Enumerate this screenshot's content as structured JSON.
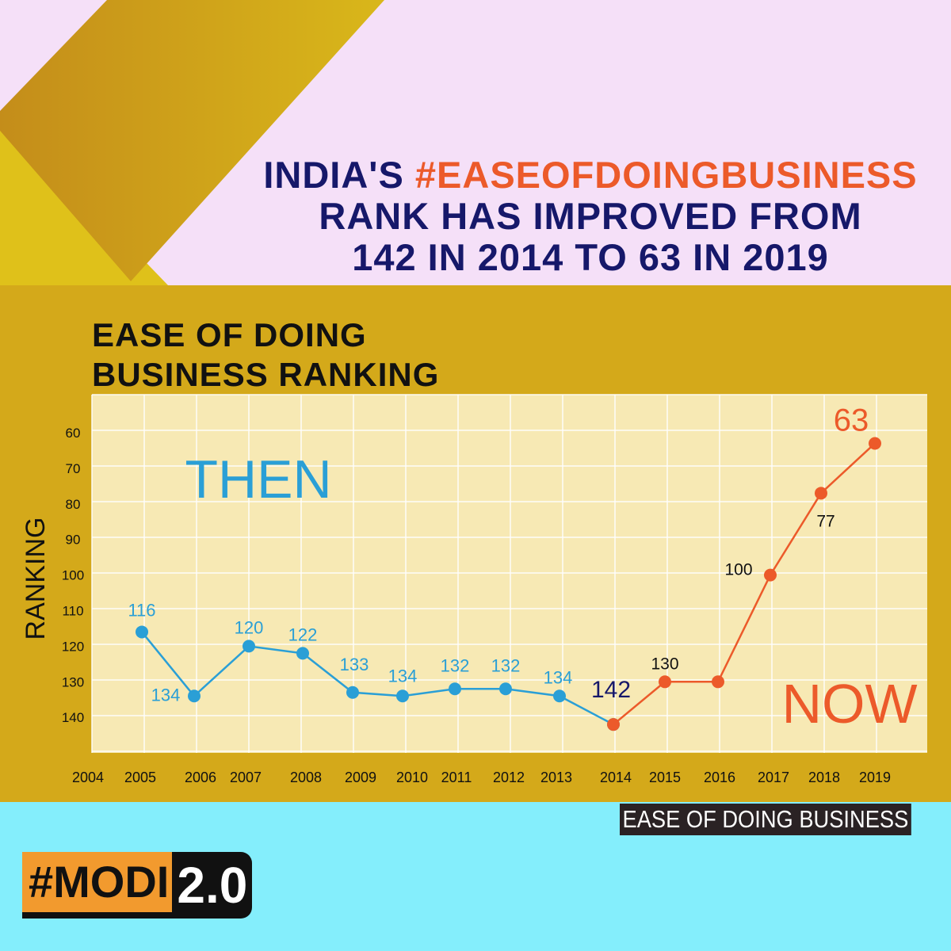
{
  "headline": {
    "line1_prefix": "INDIA'S ",
    "line1_highlight": "#EASEOFDOINGBUSINESS",
    "line2": "RANK HAS IMPROVED FROM",
    "line3": "142 IN 2014 TO 63 IN 2019"
  },
  "colors": {
    "background_top": "#f5e0f8",
    "gold": "#d9b41a",
    "background_bottom": "#84eefc",
    "then": "#2a9fd6",
    "now": "#ec5a2a",
    "headline": "#16186a"
  },
  "chart_data": {
    "type": "line",
    "title": "EASE OF DOING BUSINESS RANKING",
    "ylabel": "RANKING",
    "xlabel": "",
    "y_axis_inverted": true,
    "yticks": [
      "60",
      "70",
      "80",
      "90",
      "100",
      "110",
      "120",
      "130",
      "140"
    ],
    "xticks": [
      "2004",
      "2005",
      "2006",
      "2007",
      "2008",
      "2009",
      "2010",
      "2011",
      "2012",
      "2013",
      "2014",
      "2015",
      "2016",
      "2017",
      "2018",
      "2019"
    ],
    "grid": true,
    "annotations": {
      "then": "THEN",
      "now": "NOW"
    },
    "series": [
      {
        "era": "then",
        "color": "#2a9fd6",
        "x": [
          "2005",
          "2006",
          "2007",
          "2008",
          "2009",
          "2010",
          "2011",
          "2012",
          "2013",
          "2014"
        ],
        "values": [
          116,
          134,
          120,
          122,
          133,
          134,
          132,
          132,
          134,
          142
        ]
      },
      {
        "era": "now",
        "color": "#ec5a2a",
        "x": [
          "2014",
          "2015",
          "2016",
          "2017",
          "2018",
          "2019"
        ],
        "values": [
          142,
          130,
          130,
          100,
          77,
          63
        ]
      }
    ]
  },
  "source_label": "EASE OF DOING BUSINESS",
  "logo": {
    "part1": "#MODI",
    "part2": "2.0"
  }
}
